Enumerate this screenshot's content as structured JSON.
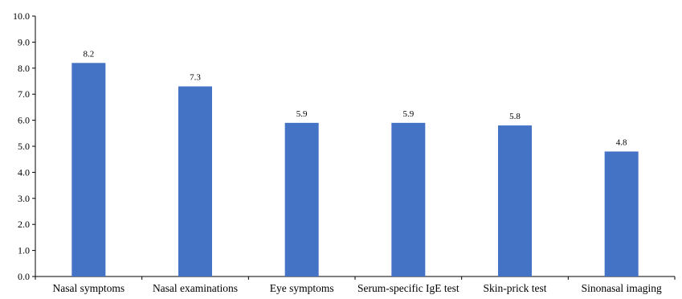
{
  "chart_data": {
    "type": "bar",
    "title": "",
    "xlabel": "",
    "ylabel": "",
    "categories": [
      "Nasal symptoms",
      "Nasal examinations",
      "Eye symptoms",
      "Serum-specific IgE test",
      "Skin-prick test",
      "Sinonasal imaging"
    ],
    "values": [
      8.2,
      7.3,
      5.9,
      5.9,
      5.8,
      4.8
    ],
    "value_labels": [
      "8.2",
      "7.3",
      "5.9",
      "5.9",
      "5.8",
      "4.8"
    ],
    "ylim": [
      0,
      10
    ],
    "yticks": [
      0,
      1,
      2,
      3,
      4,
      5,
      6,
      7,
      8,
      9,
      10
    ],
    "ytick_labels": [
      "0.0",
      "1.0",
      "2.0",
      "3.0",
      "4.0",
      "5.0",
      "6.0",
      "7.0",
      "8.0",
      "9.0",
      "10.0"
    ],
    "grid": false,
    "legend": "none",
    "bar_color": "#4472C4",
    "axis_color": "#000000"
  }
}
